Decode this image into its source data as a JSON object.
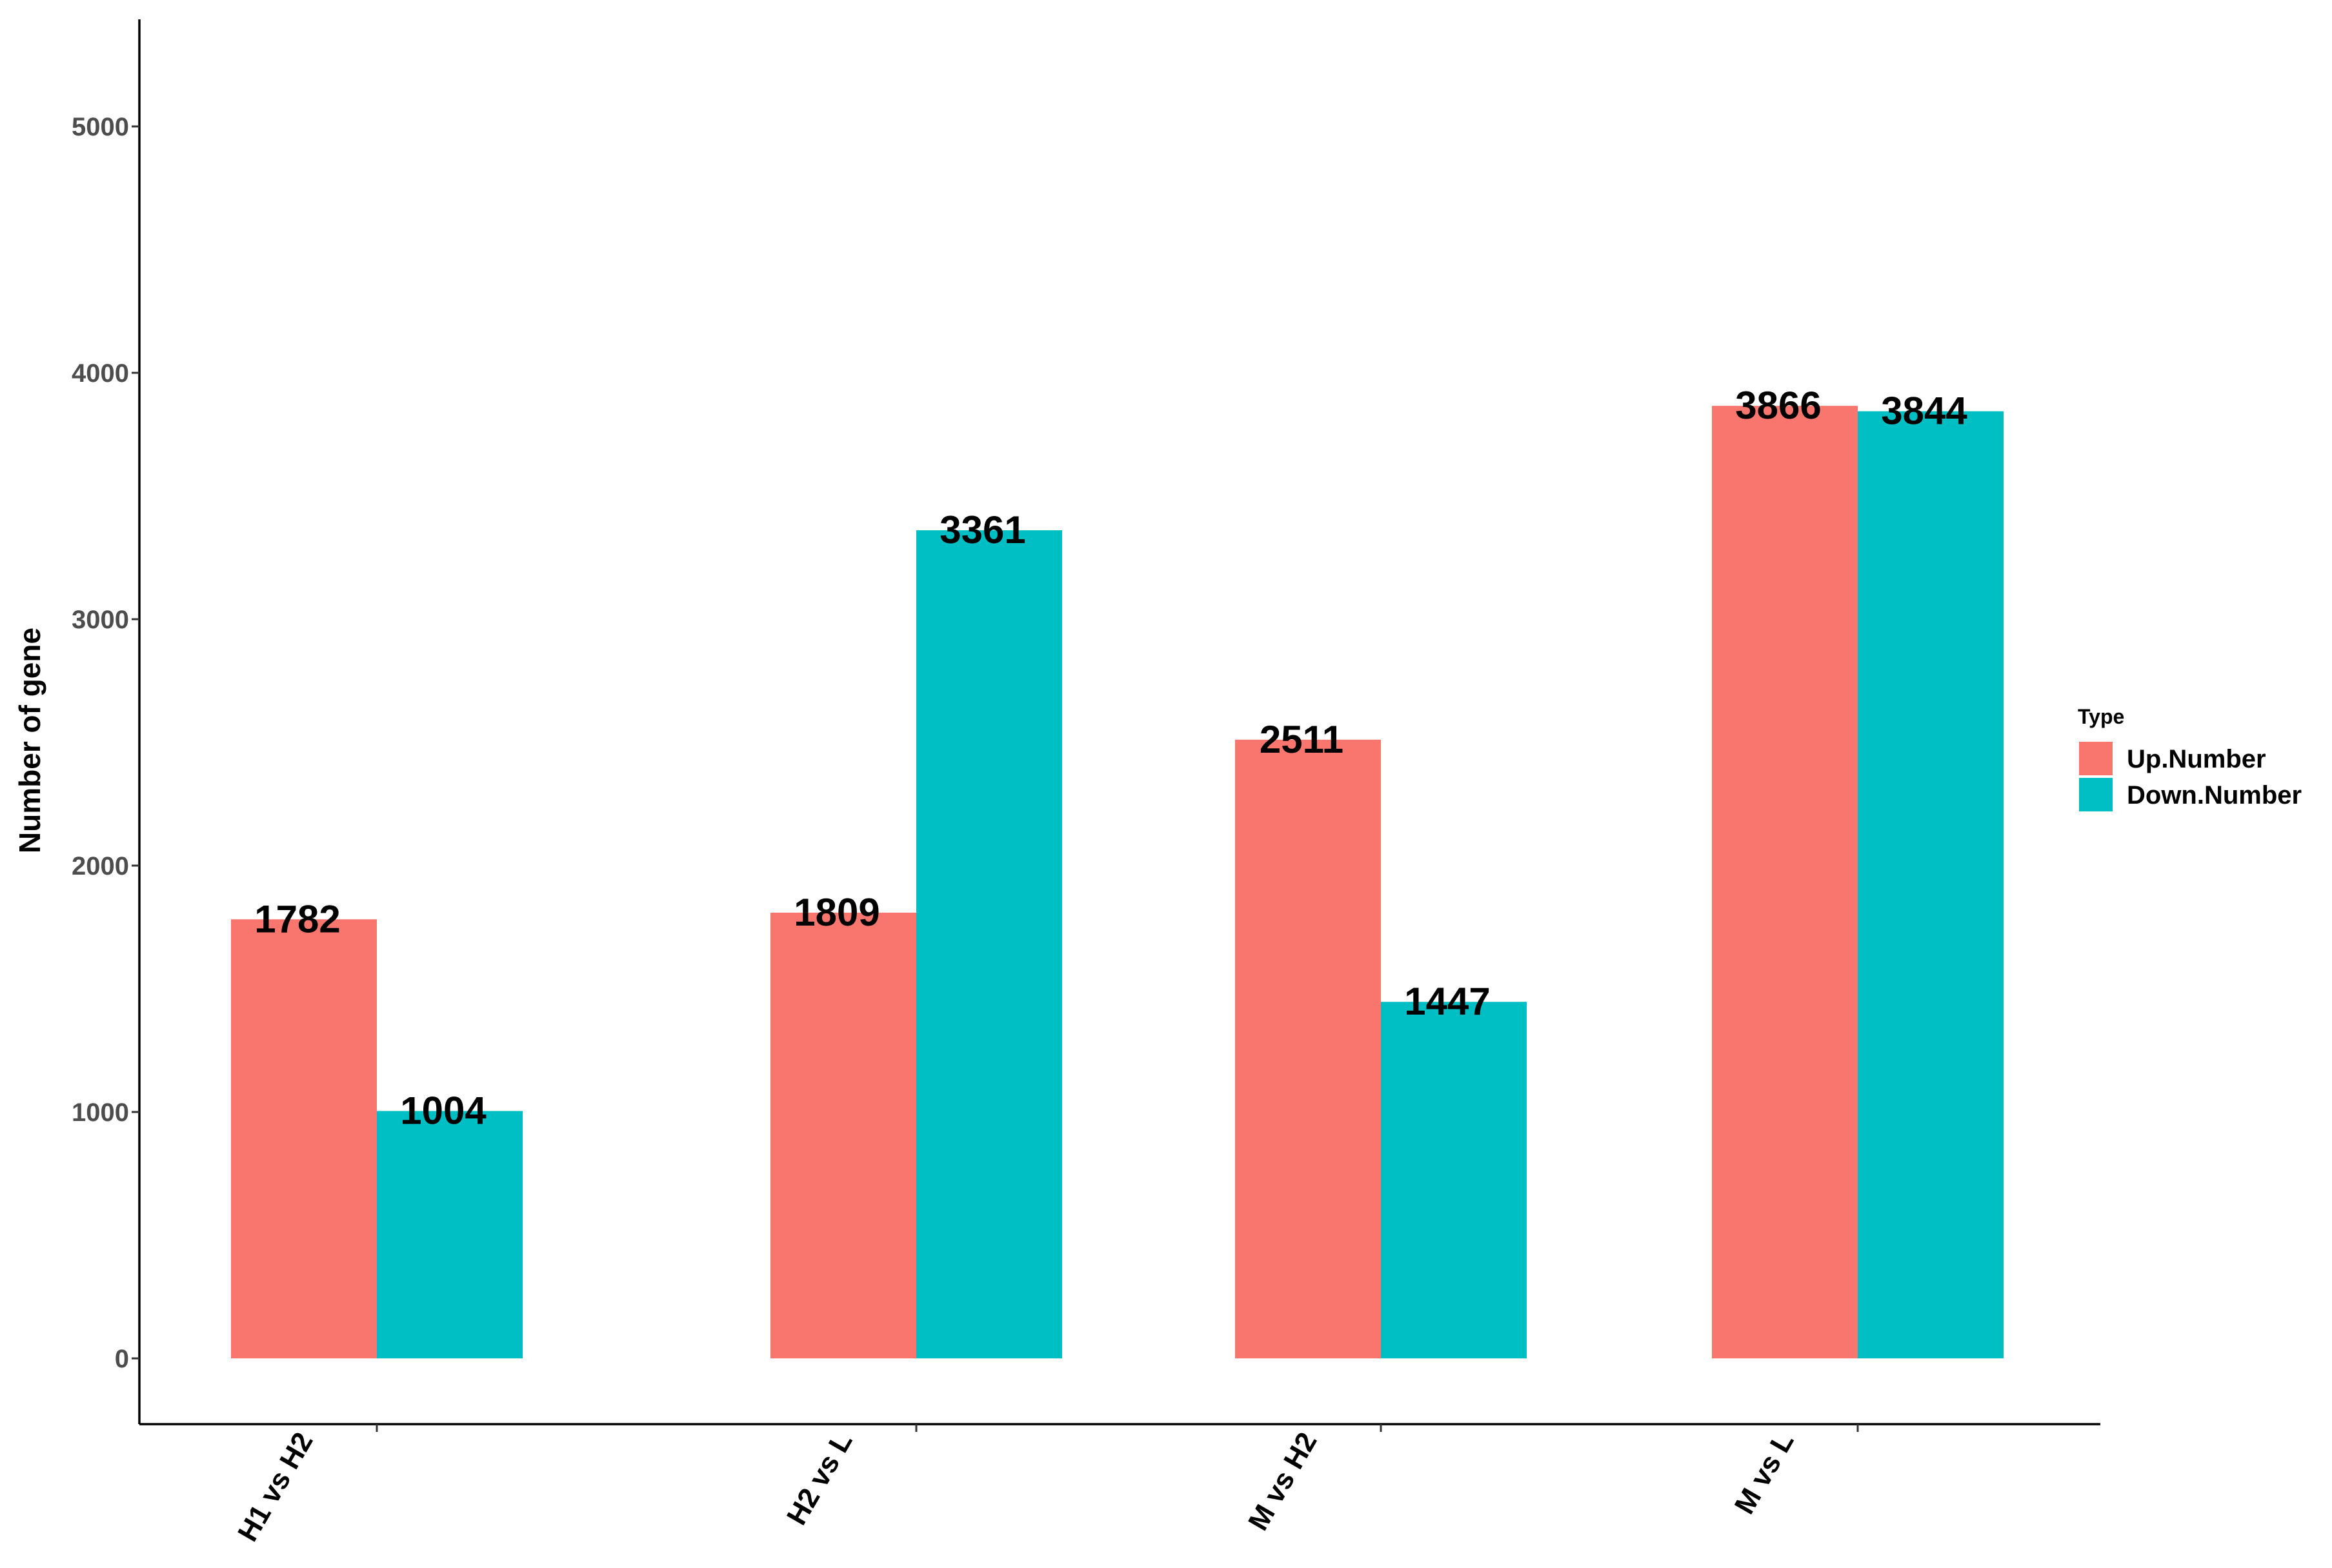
{
  "chart_data": {
    "type": "bar",
    "categories": [
      "H1 vs H2",
      "H2 vs L",
      "M vs H2",
      "M vs L"
    ],
    "series": [
      {
        "name": "Up.Number",
        "values": [
          1782,
          1809,
          2511,
          3866
        ],
        "color": "#F8766D"
      },
      {
        "name": "Down.Number",
        "values": [
          1004,
          3361,
          1447,
          3844
        ],
        "color": "#00BFC4"
      }
    ],
    "title": "",
    "xlabel": "",
    "ylabel": "Number of gene",
    "ylim": [
      0,
      5000
    ],
    "y_ticks": [
      0,
      1000,
      2000,
      3000,
      4000,
      5000
    ],
    "legend_title": "Type",
    "legend_position": "right",
    "grid": false,
    "show_data_labels": true
  }
}
